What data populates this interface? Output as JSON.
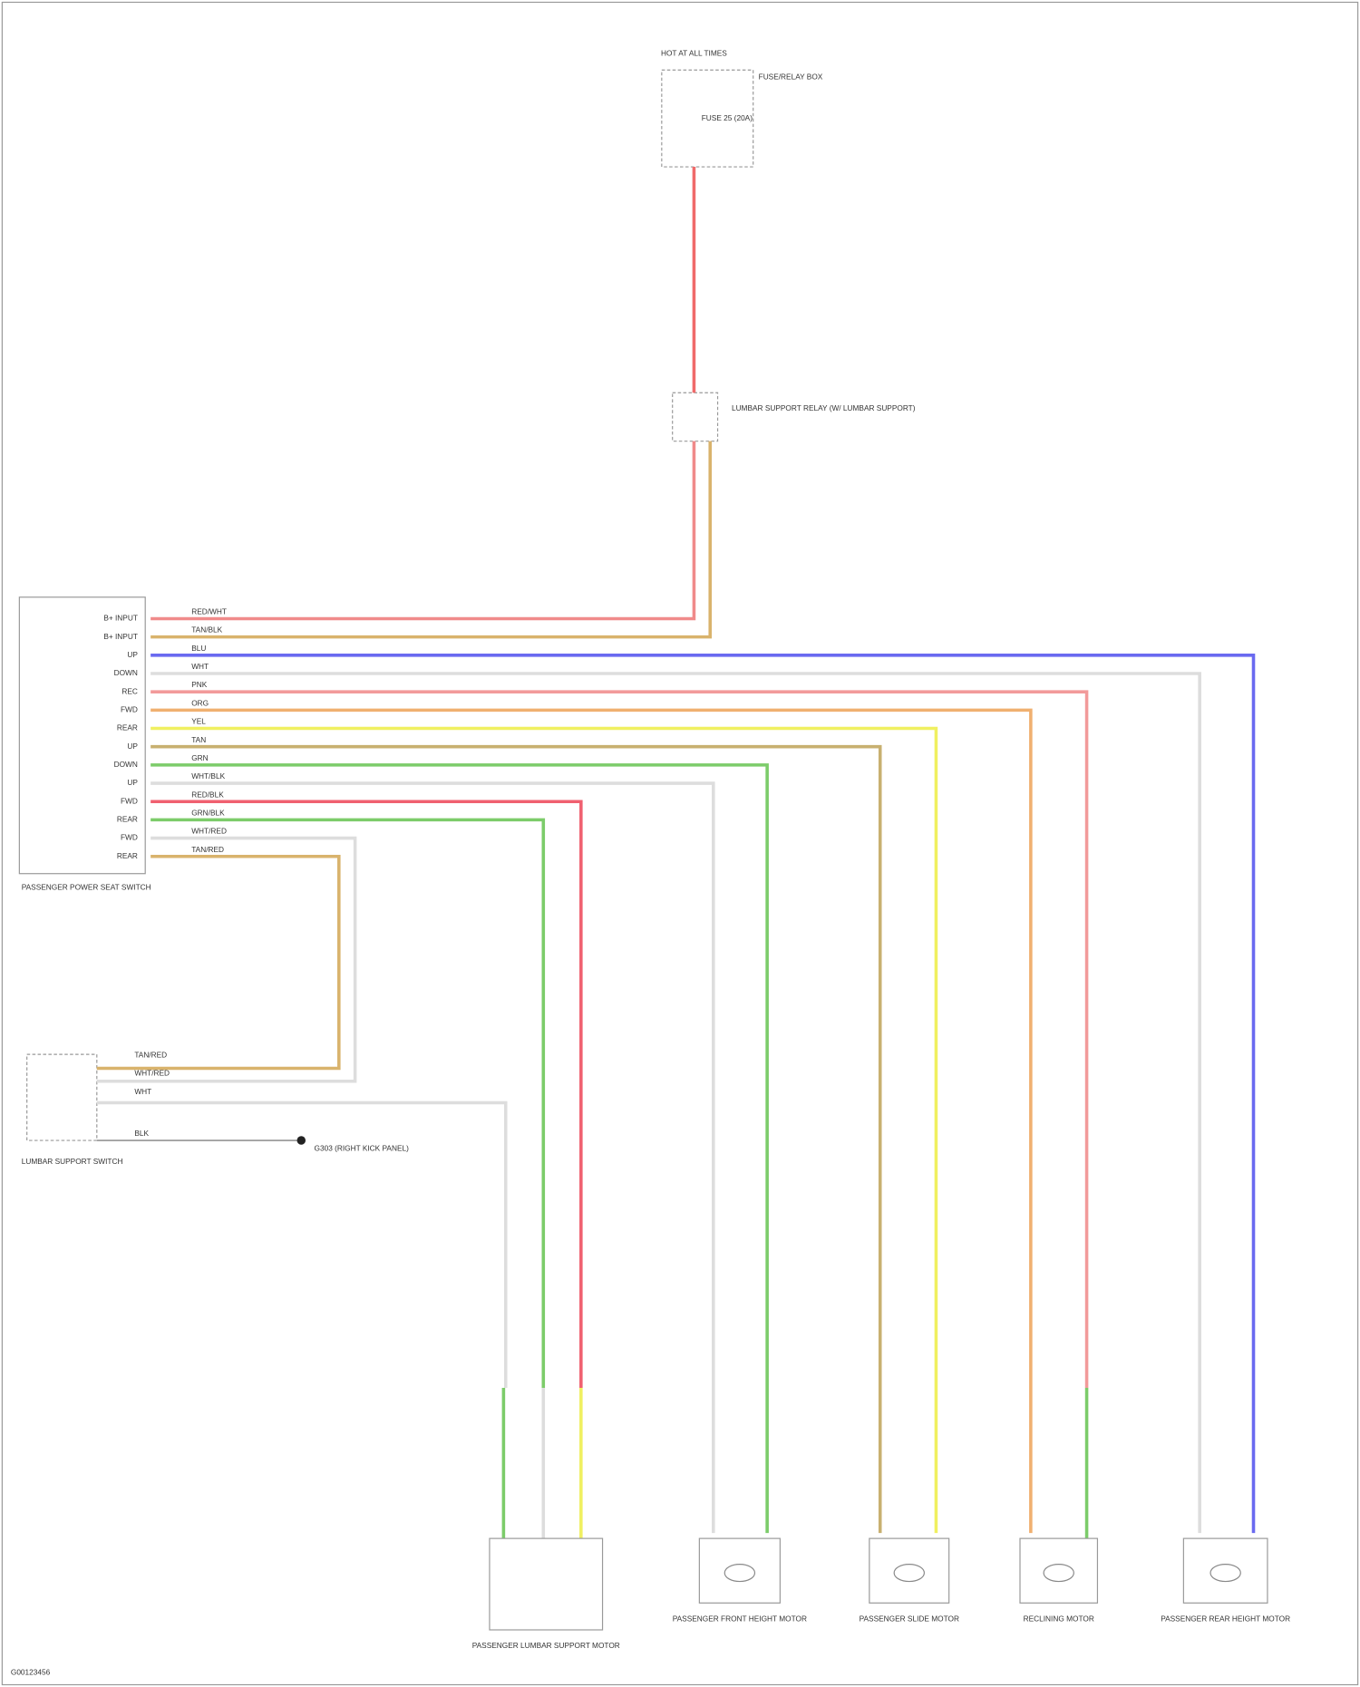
{
  "fuse_box": {
    "title": "HOT AT ALL TIMES",
    "name": "FUSE/RELAY BOX",
    "fuse": "FUSE 25 (20A)"
  },
  "relay": {
    "name": "LUMBAR SUPPORT RELAY (W/ LUMBAR SUPPORT)"
  },
  "switch": {
    "name": "PASSENGER POWER SEAT SWITCH",
    "pins": [
      "B+ INPUT",
      "B+ INPUT",
      "UP",
      "DOWN",
      "REC",
      "FWD",
      "REAR",
      "UP",
      "DOWN",
      "UP",
      "FWD",
      "REAR",
      "FWD",
      "REAR"
    ],
    "wires": [
      "RED/WHT",
      "TAN/BLK",
      "BLU",
      "WHT",
      "PNK",
      "ORG",
      "YEL",
      "TAN",
      "GRN",
      "WHT/BLK",
      "RED/BLK",
      "GRN/BLK",
      "WHT/RED",
      "TAN/RED"
    ]
  },
  "lumbar_switch": {
    "name": "LUMBAR SUPPORT SWITCH",
    "wires": [
      "TAN/RED",
      "WHT/RED",
      "WHT",
      "BLK"
    ]
  },
  "ground": "G303 (RIGHT KICK PANEL)",
  "motors": [
    "PASSENGER LUMBAR SUPPORT MOTOR",
    "PASSENGER FRONT HEIGHT MOTOR",
    "PASSENGER SLIDE MOTOR",
    "RECLINING MOTOR",
    "PASSENGER REAR HEIGHT MOTOR"
  ],
  "footer": "G00123456"
}
